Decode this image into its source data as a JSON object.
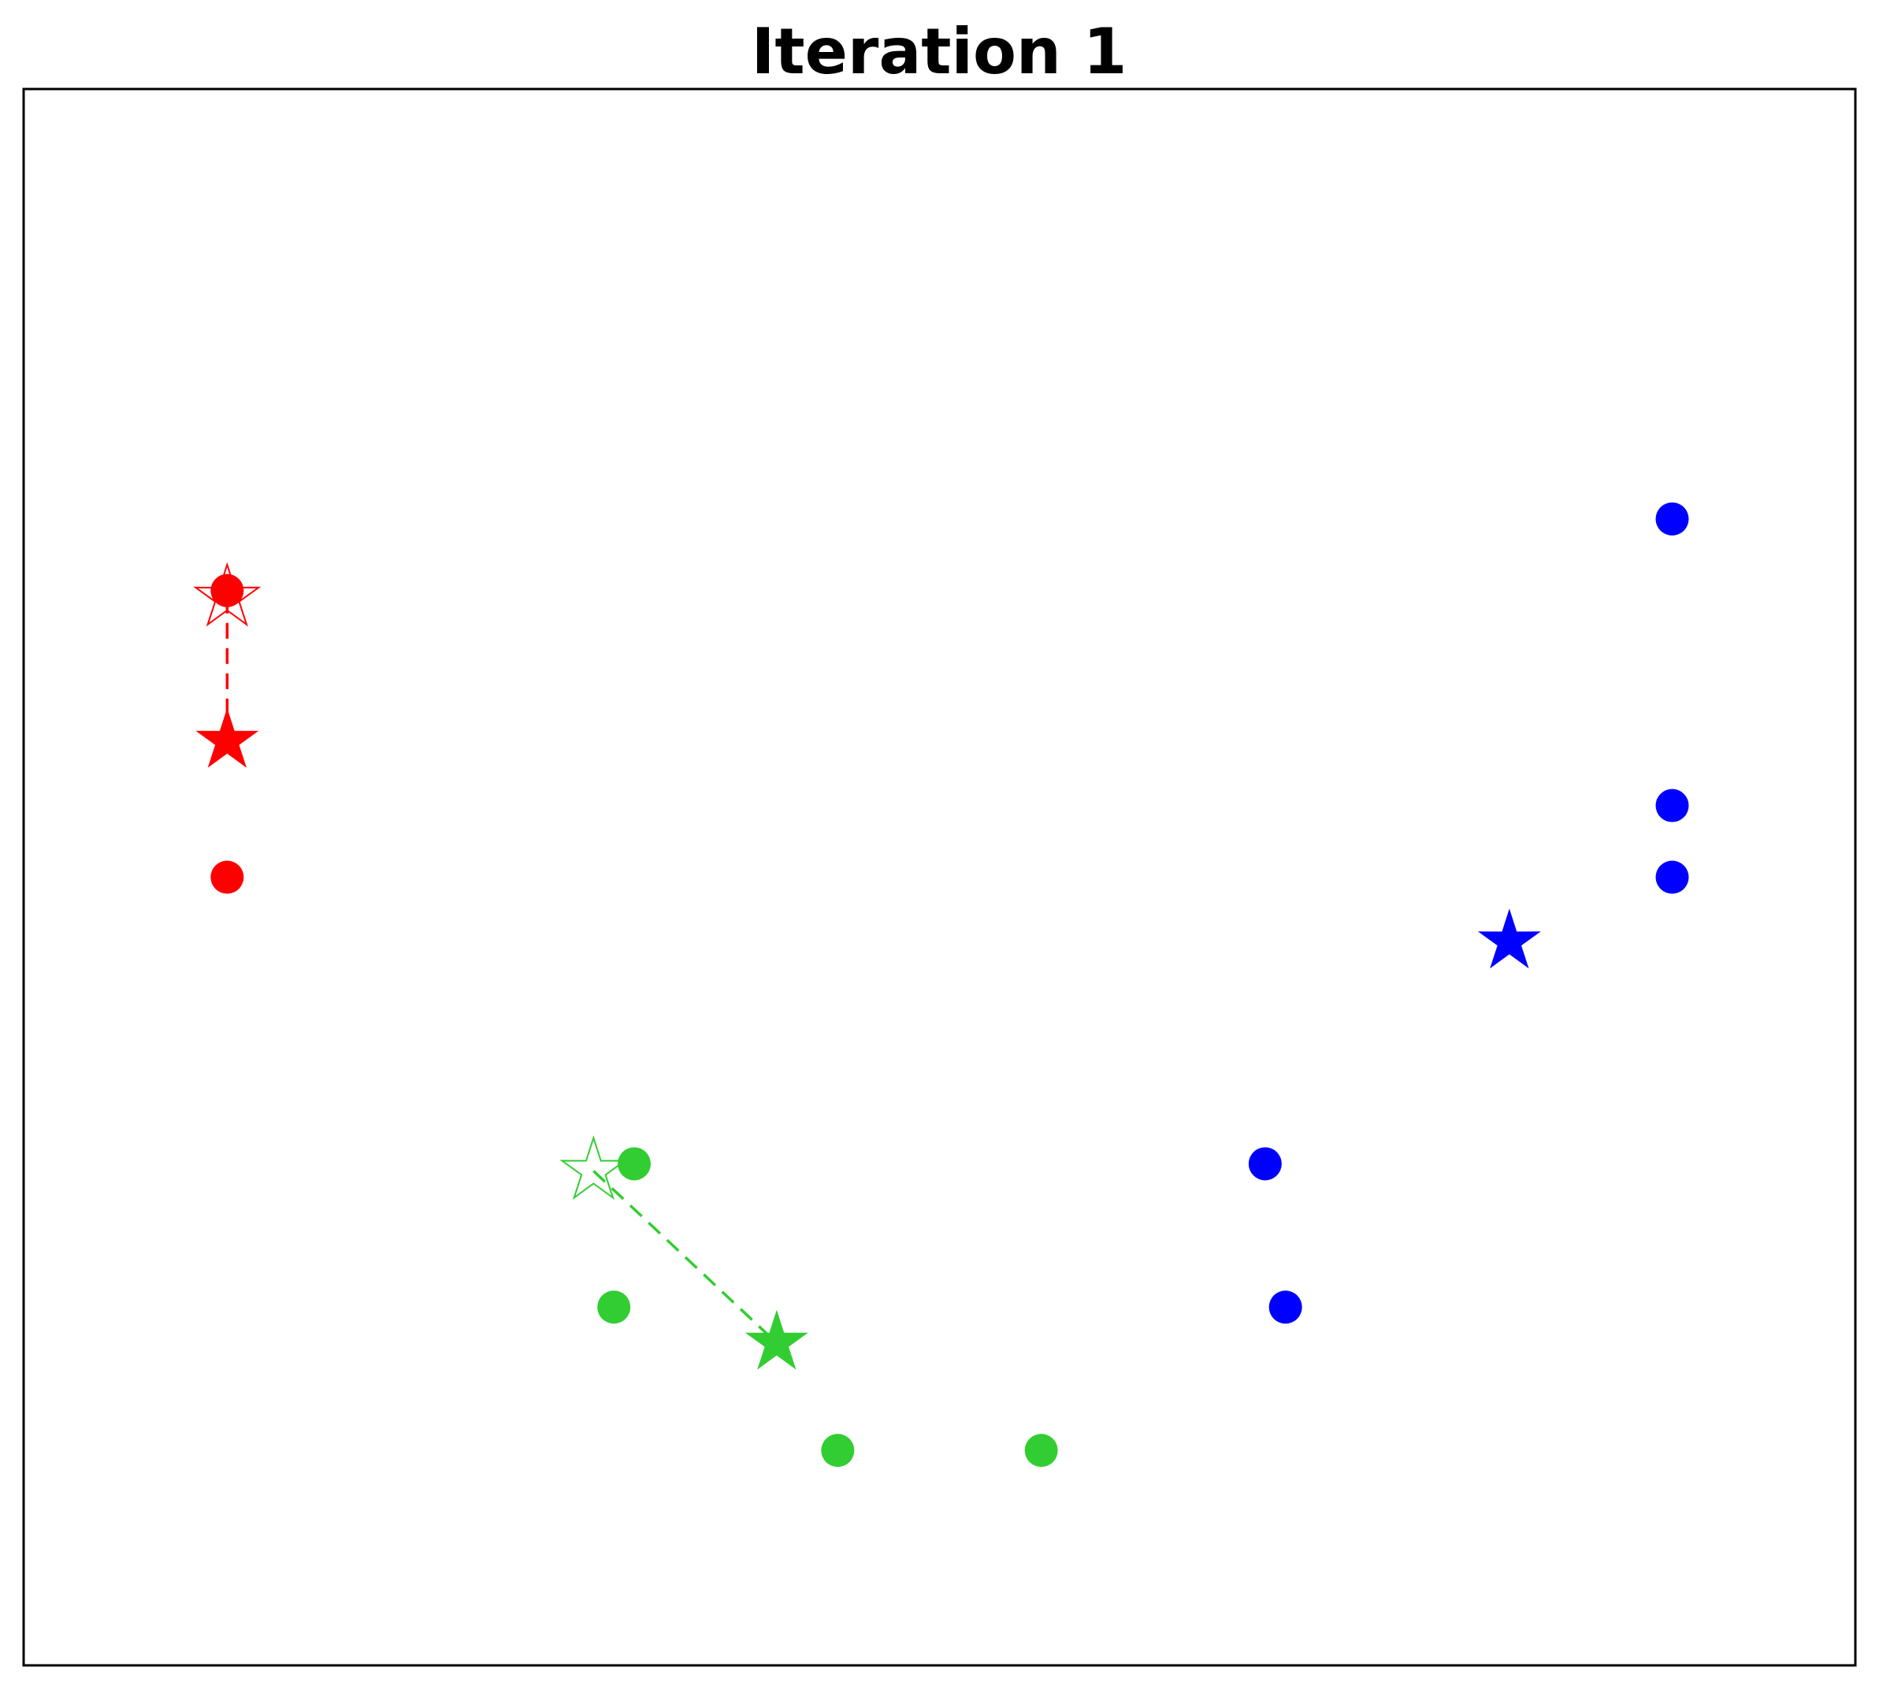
{
  "chart_data": {
    "type": "scatter",
    "title": "Iteration 1",
    "xlabel": "",
    "ylabel": "",
    "xlim": [
      0,
      9
    ],
    "ylim": [
      0,
      11
    ],
    "grid": false,
    "ticks_visible": false,
    "legend": "none",
    "series": [
      {
        "color": "#ff0000",
        "points": [
          [
            1.0,
            7.5
          ],
          [
            1.0,
            5.5
          ]
        ],
        "previous_centroid": [
          1.0,
          7.45
        ],
        "centroid": [
          1.0,
          6.45
        ]
      },
      {
        "color": "#32cd32",
        "points": [
          [
            3.0,
            3.5
          ],
          [
            2.9,
            2.5
          ],
          [
            4.0,
            1.5
          ],
          [
            5.0,
            1.5
          ]
        ],
        "previous_centroid": [
          2.8,
          3.45
        ],
        "centroid": [
          3.7,
          2.25
        ]
      },
      {
        "color": "#0000ff",
        "points": [
          [
            8.1,
            8.0
          ],
          [
            8.1,
            6.0
          ],
          [
            8.1,
            5.5
          ],
          [
            6.1,
            3.5
          ],
          [
            6.2,
            2.5
          ]
        ],
        "centroid": [
          7.3,
          5.05
        ]
      }
    ]
  }
}
